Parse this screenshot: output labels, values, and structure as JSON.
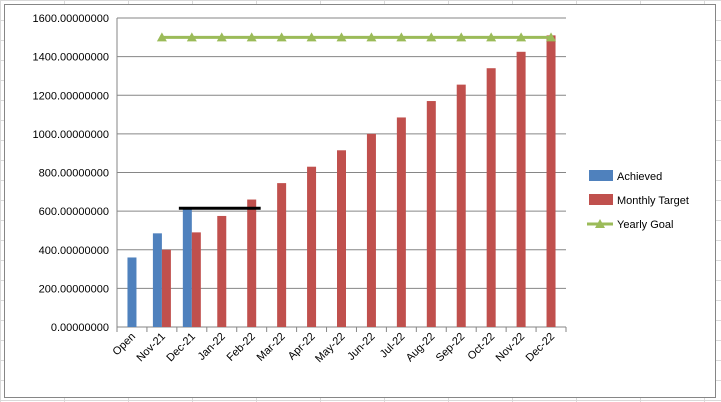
{
  "chart_data": {
    "type": "bar",
    "categories": [
      "Open",
      "Nov-21",
      "Dec-21",
      "Jan-22",
      "Feb-22",
      "Mar-22",
      "Apr-22",
      "May-22",
      "Jun-22",
      "Jul-22",
      "Aug-22",
      "Sep-22",
      "Oct-22",
      "Nov-22",
      "Dec-22"
    ],
    "series": [
      {
        "name": "Achieved",
        "kind": "bar",
        "color": "#4f81bd",
        "values": [
          360,
          485,
          615,
          null,
          null,
          null,
          null,
          null,
          null,
          null,
          null,
          null,
          null,
          null,
          null
        ]
      },
      {
        "name": "Monthly Target",
        "kind": "bar",
        "color": "#c0504d",
        "values": [
          null,
          400,
          490,
          575,
          660,
          745,
          830,
          915,
          1000,
          1085,
          1170,
          1255,
          1340,
          1425,
          1510
        ]
      },
      {
        "name": "Yearly Goal",
        "kind": "line",
        "marker": "triangle",
        "color": "#9bbb59",
        "values": [
          null,
          1500,
          1500,
          1500,
          1500,
          1500,
          1500,
          1500,
          1500,
          1500,
          1500,
          1500,
          1500,
          1500,
          1500
        ]
      }
    ],
    "annotation_line": {
      "from": "Dec-21",
      "to": "Feb-22",
      "y": 615,
      "color": "#000000"
    },
    "ylim": [
      0,
      1600
    ],
    "ytick_values": [
      0,
      200,
      400,
      600,
      800,
      1000,
      1200,
      1400,
      1600
    ],
    "ytick_labels": [
      "0.00000000",
      "200.00000000",
      "400.00000000",
      "600.00000000",
      "800.00000000",
      "1000.00000000",
      "1200.00000000",
      "1400.00000000",
      "1600.00000000"
    ],
    "grid": true,
    "legend_position": "right"
  }
}
